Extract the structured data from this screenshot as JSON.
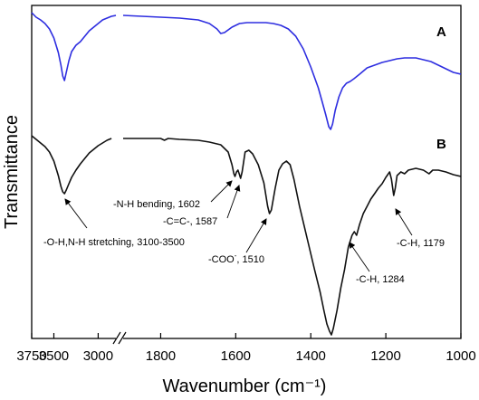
{
  "chart_data": {
    "type": "line",
    "xlabel": "Wavenumber (cm⁻¹)",
    "ylabel": "Transmittance",
    "x_reversed": true,
    "x_axis_break": true,
    "x_left_ticks": [
      3750,
      3500,
      3000
    ],
    "x_right_ticks": [
      1800,
      1600,
      1400,
      1200,
      1000
    ],
    "series": [
      {
        "name": "A",
        "color": "#2e2ee0",
        "points": [
          [
            3750,
            2
          ],
          [
            3700,
            7
          ],
          [
            3650,
            10
          ],
          [
            3600,
            14
          ],
          [
            3550,
            20
          ],
          [
            3500,
            30
          ],
          [
            3450,
            46
          ],
          [
            3420,
            60
          ],
          [
            3400,
            72
          ],
          [
            3380,
            77
          ],
          [
            3360,
            68
          ],
          [
            3330,
            55
          ],
          [
            3300,
            45
          ],
          [
            3250,
            38
          ],
          [
            3200,
            34
          ],
          [
            3150,
            28
          ],
          [
            3100,
            22
          ],
          [
            3050,
            18
          ],
          [
            3000,
            14
          ],
          [
            2950,
            10
          ],
          [
            2900,
            8
          ],
          [
            2850,
            6
          ],
          [
            2800,
            5
          ],
          "break",
          [
            1900,
            5
          ],
          [
            1850,
            6
          ],
          [
            1800,
            7
          ],
          [
            1750,
            8
          ],
          [
            1700,
            10
          ],
          [
            1670,
            14
          ],
          [
            1650,
            20
          ],
          [
            1640,
            25
          ],
          [
            1630,
            24
          ],
          [
            1610,
            18
          ],
          [
            1590,
            14
          ],
          [
            1570,
            13
          ],
          [
            1550,
            13
          ],
          [
            1520,
            13
          ],
          [
            1500,
            14
          ],
          [
            1480,
            16
          ],
          [
            1460,
            20
          ],
          [
            1440,
            28
          ],
          [
            1420,
            42
          ],
          [
            1400,
            62
          ],
          [
            1380,
            85
          ],
          [
            1370,
            100
          ],
          [
            1360,
            115
          ],
          [
            1352,
            128
          ],
          [
            1347,
            131
          ],
          [
            1342,
            125
          ],
          [
            1335,
            110
          ],
          [
            1325,
            95
          ],
          [
            1315,
            85
          ],
          [
            1305,
            80
          ],
          [
            1295,
            78
          ],
          [
            1285,
            75
          ],
          [
            1270,
            70
          ],
          [
            1250,
            63
          ],
          [
            1230,
            60
          ],
          [
            1210,
            57
          ],
          [
            1190,
            55
          ],
          [
            1170,
            53
          ],
          [
            1150,
            52
          ],
          [
            1120,
            52
          ],
          [
            1100,
            54
          ],
          [
            1080,
            56
          ],
          [
            1060,
            60
          ],
          [
            1040,
            64
          ],
          [
            1020,
            68
          ],
          [
            1000,
            70
          ]
        ]
      },
      {
        "name": "B",
        "color": "#111111",
        "points": [
          [
            3750,
            2
          ],
          [
            3700,
            6
          ],
          [
            3650,
            10
          ],
          [
            3600,
            14
          ],
          [
            3550,
            20
          ],
          [
            3500,
            30
          ],
          [
            3450,
            46
          ],
          [
            3420,
            58
          ],
          [
            3400,
            64
          ],
          [
            3380,
            66
          ],
          [
            3360,
            62
          ],
          [
            3330,
            55
          ],
          [
            3300,
            48
          ],
          [
            3250,
            40
          ],
          [
            3200,
            33
          ],
          [
            3150,
            27
          ],
          [
            3100,
            21
          ],
          [
            3050,
            17
          ],
          [
            3000,
            13
          ],
          [
            2950,
            10
          ],
          [
            2900,
            7
          ],
          [
            2850,
            5
          ],
          "break",
          [
            1900,
            5
          ],
          [
            1850,
            5
          ],
          [
            1800,
            5
          ],
          [
            1790,
            7
          ],
          [
            1780,
            5
          ],
          [
            1750,
            6
          ],
          [
            1700,
            7
          ],
          [
            1670,
            9
          ],
          [
            1640,
            12
          ],
          [
            1620,
            20
          ],
          [
            1610,
            34
          ],
          [
            1605,
            44
          ],
          [
            1602,
            47
          ],
          [
            1598,
            42
          ],
          [
            1594,
            40
          ],
          [
            1590,
            45
          ],
          [
            1587,
            49
          ],
          [
            1583,
            42
          ],
          [
            1575,
            20
          ],
          [
            1565,
            18
          ],
          [
            1555,
            22
          ],
          [
            1540,
            34
          ],
          [
            1525,
            54
          ],
          [
            1515,
            80
          ],
          [
            1510,
            88
          ],
          [
            1505,
            84
          ],
          [
            1495,
            60
          ],
          [
            1485,
            40
          ],
          [
            1475,
            33
          ],
          [
            1465,
            30
          ],
          [
            1455,
            34
          ],
          [
            1445,
            50
          ],
          [
            1430,
            80
          ],
          [
            1410,
            115
          ],
          [
            1390,
            150
          ],
          [
            1375,
            175
          ],
          [
            1365,
            195
          ],
          [
            1357,
            210
          ],
          [
            1350,
            218
          ],
          [
            1345,
            222
          ],
          [
            1340,
            215
          ],
          [
            1330,
            195
          ],
          [
            1320,
            170
          ],
          [
            1310,
            150
          ],
          [
            1300,
            125
          ],
          [
            1290,
            112
          ],
          [
            1284,
            108
          ],
          [
            1278,
            112
          ],
          [
            1270,
            100
          ],
          [
            1260,
            88
          ],
          [
            1250,
            80
          ],
          [
            1240,
            72
          ],
          [
            1230,
            66
          ],
          [
            1220,
            60
          ],
          [
            1210,
            55
          ],
          [
            1200,
            48
          ],
          [
            1190,
            42
          ],
          [
            1185,
            50
          ],
          [
            1179,
            68
          ],
          [
            1175,
            60
          ],
          [
            1170,
            46
          ],
          [
            1160,
            42
          ],
          [
            1150,
            44
          ],
          [
            1140,
            40
          ],
          [
            1120,
            38
          ],
          [
            1100,
            40
          ],
          [
            1085,
            44
          ],
          [
            1075,
            40
          ],
          [
            1060,
            40
          ],
          [
            1040,
            42
          ],
          [
            1020,
            45
          ],
          [
            1000,
            47
          ]
        ]
      }
    ],
    "annotations": [
      {
        "text": "-O-H,N-H stretching, 3100-3500",
        "x": 3320
      },
      {
        "text": "-N-H bending, 1602",
        "x": 1602
      },
      {
        "text": "-C=C-, 1587",
        "x": 1587
      },
      {
        "text": "-COO",
        "sup": "-",
        "tail": ", 1510",
        "x": 1510
      },
      {
        "text": "-C-H, 1284",
        "x": 1284
      },
      {
        "text": "-C-H, 1179",
        "x": 1179
      }
    ]
  }
}
